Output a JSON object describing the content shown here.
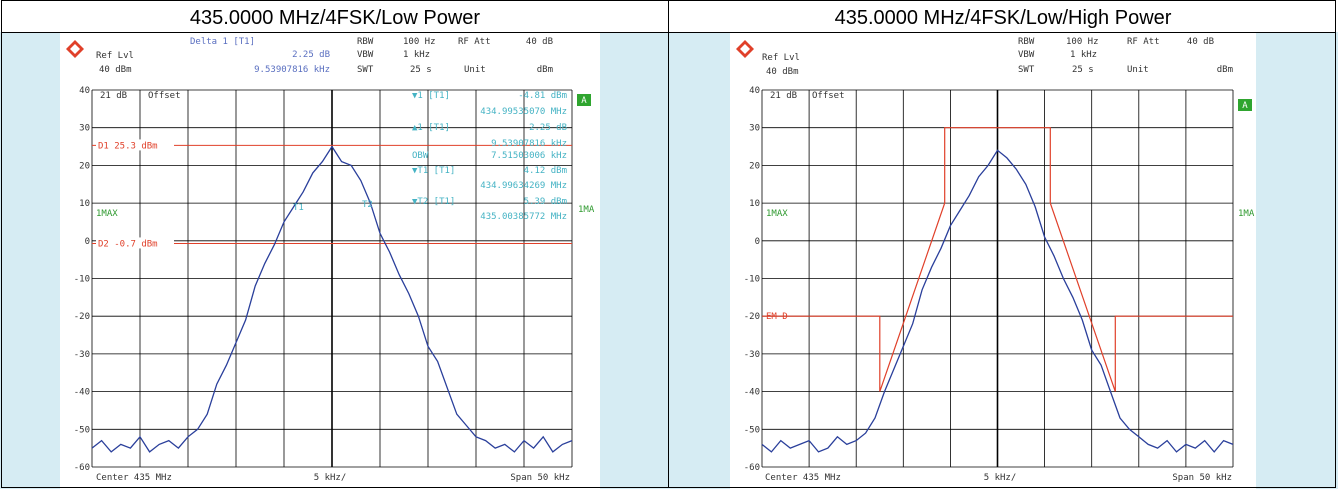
{
  "chart_data": [
    {
      "type": "line",
      "title": "435.0000 MHz/4FSK/Low Power",
      "xlim": [
        -25,
        25
      ],
      "ylim": [
        -60,
        40
      ],
      "yticks": [
        40,
        30,
        20,
        10,
        0,
        -10,
        -20,
        -30,
        -40,
        -50,
        -60
      ],
      "series": [
        {
          "name": "1MAX",
          "color": "#2a3f9b",
          "x": [
            -25,
            -24,
            -23,
            -22,
            -21,
            -20,
            -19,
            -18,
            -17,
            -16,
            -15,
            -14,
            -13,
            -12,
            -11,
            -10,
            -9,
            -8,
            -7,
            -6,
            -5,
            -4,
            -3,
            -2,
            -1,
            0,
            1,
            2,
            3,
            4,
            5,
            6,
            7,
            8,
            9,
            10,
            11,
            12,
            13,
            14,
            15,
            16,
            17,
            18,
            19,
            20,
            21,
            22,
            23,
            24,
            25
          ],
          "values": [
            -55,
            -53,
            -56,
            -54,
            -55,
            -52,
            -56,
            -54,
            -53,
            -55,
            -52,
            -50,
            -46,
            -38,
            -33,
            -27,
            -21,
            -12,
            -6,
            -1,
            5,
            9,
            13,
            18,
            21,
            25,
            21,
            20,
            16,
            10,
            2,
            -3,
            -9,
            -14,
            -20,
            -28,
            -32,
            -39,
            -46,
            -49,
            -52,
            -53,
            -55,
            -54,
            -56,
            -53,
            -55,
            -52,
            -56,
            -54,
            -53
          ]
        }
      ],
      "hlines": [
        {
          "label": "D1 25.3 dBm",
          "value": 25.3,
          "color": "#e0402a"
        },
        {
          "label": "D2 -0.7 dBm",
          "value": -0.7,
          "color": "#e0402a"
        }
      ],
      "annotations": [
        "Delta 1 [T1]",
        "2.25 dB",
        "9.53907816 kHz",
        "RBW",
        "100 Hz",
        "RF Att",
        "40 dB",
        "VBW",
        "1 kHz",
        "SWT",
        "25 s",
        "Unit",
        "dBm",
        "Ref Lvl",
        "40 dBm",
        "21 dB",
        "Offset",
        "1MA",
        "A",
        "▼1 [T1]",
        "-4.81 dBm",
        "434.99535070 MHz",
        "▲1 [T1]",
        "2.25 dB",
        "9.53907816 kHz",
        "OBW",
        "7.51503006 kHz",
        "▼T1 [T1]",
        "4.12 dBm",
        "434.99634269 MHz",
        "▼T2 [T1]",
        "5.39 dBm",
        "435.00385772 MHz",
        "T1",
        "T2",
        "Center 435 MHz",
        "5 kHz/",
        "Span 50 kHz"
      ]
    },
    {
      "type": "line",
      "title": "435.0000 MHz/4FSK/Low/High Power",
      "xlim": [
        -25,
        25
      ],
      "ylim": [
        -60,
        40
      ],
      "yticks": [
        40,
        30,
        20,
        10,
        0,
        -10,
        -20,
        -30,
        -40,
        -50,
        -60
      ],
      "series": [
        {
          "name": "1MAX",
          "color": "#2a3f9b",
          "x": [
            -25,
            -24,
            -23,
            -22,
            -21,
            -20,
            -19,
            -18,
            -17,
            -16,
            -15,
            -14,
            -13,
            -12,
            -11,
            -10,
            -9,
            -8,
            -7,
            -6,
            -5,
            -4,
            -3,
            -2,
            -1,
            0,
            1,
            2,
            3,
            4,
            5,
            6,
            7,
            8,
            9,
            10,
            11,
            12,
            13,
            14,
            15,
            16,
            17,
            18,
            19,
            20,
            21,
            22,
            23,
            24,
            25
          ],
          "values": [
            -54,
            -56,
            -53,
            -55,
            -54,
            -53,
            -56,
            -55,
            -52,
            -54,
            -53,
            -51,
            -47,
            -40,
            -34,
            -28,
            -22,
            -13,
            -7,
            -2,
            4,
            8,
            12,
            17,
            20,
            24,
            22,
            19,
            15,
            9,
            1,
            -4,
            -10,
            -15,
            -21,
            -29,
            -33,
            -40,
            -47,
            -50,
            -52,
            -54,
            -55,
            -53,
            -56,
            -54,
            -55,
            -53,
            -56,
            -53,
            -54
          ]
        },
        {
          "name": "EM D",
          "color": "#e0402a",
          "x": [
            -25,
            -12.5,
            -12.5,
            -5.6,
            -5.6,
            5.6,
            5.6,
            12.5,
            12.5,
            25
          ],
          "values": [
            -20,
            -20,
            -40,
            10,
            30,
            30,
            10,
            -40,
            -20,
            -20
          ]
        }
      ],
      "annotations": [
        "RBW",
        "100 Hz",
        "RF Att",
        "40 dB",
        "VBW",
        "1 kHz",
        "SWT",
        "25 s",
        "Unit",
        "dBm",
        "Ref Lvl",
        "40 dBm",
        "21 dB",
        "Offset",
        "1MA",
        "A",
        "Center 435 MHz",
        "5 kHz/",
        "Span 50 kHz"
      ]
    }
  ]
}
